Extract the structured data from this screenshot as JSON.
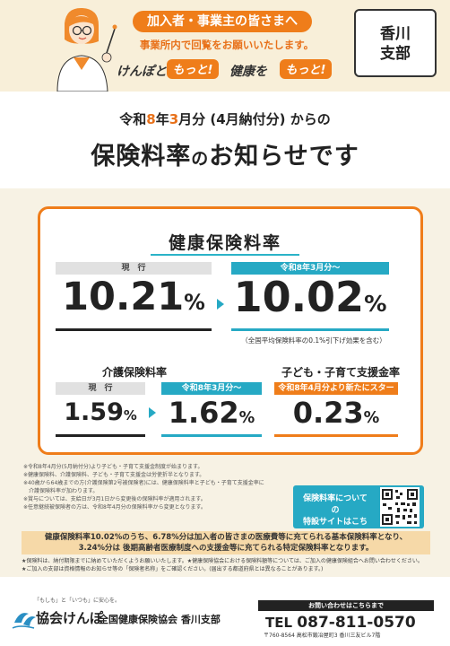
{
  "header": {
    "audience": "加入者・事業主の皆さまへ",
    "audience_sub": "事業所内で回覧をお願いいたします。",
    "slogan_part1": "けんぽと",
    "slogan_motto": "もっと!",
    "slogan_part2": "健康を",
    "branch": "香川\n支部"
  },
  "title": {
    "line1_prefix": "令和",
    "year": "8",
    "line1_mid1": "年",
    "month": "3",
    "line1_mid2": "月分 (4月納付分) からの",
    "line2_a": "保険料率",
    "line2_b": "の",
    "line2_c": "お知らせです"
  },
  "health": {
    "heading": "健康保険料率",
    "current_label": "現　行",
    "current_value": "10.21",
    "new_label": "令和8年3月分～",
    "new_value": "10.02",
    "pct": "%",
    "note": "（全国平均保険料率の0.1%引下げ効果を含む）"
  },
  "care": {
    "heading": "介護保険料率",
    "current_label": "現　行",
    "current_value": "1.59",
    "new_label": "令和8年3月分～",
    "new_value": "1.62",
    "pct": "%"
  },
  "child": {
    "heading": "子ども・子育て支援金率",
    "label": "令和8年4月分より新たにスタート",
    "value": "0.23",
    "pct": "%"
  },
  "footnotes": [
    "※令和8年4月分(5月納付分)より子ども・子育て支援金制度が始まります。",
    "※健康保険料、介護保険料、子ども・子育て支援金は労使折半となります。",
    "※40歳から64歳までの方(介護保険第2号被保険者)には、健康保険料率と子ども・子育て支援金率に",
    "　介護保険料率が加わります。",
    "※賞与については、支給日が3月1日から変更後の保険料率が適用されます。",
    "※任意継続被保険者の方は、令和8年4月分の保険料率から変更となります。"
  ],
  "qr_cta": "保険料率についての\n特設サイトはこちら",
  "explain": "健康保険料率10.02%のうち、6.78%分は加入者の皆さまの医療費等に充てられる基本保険料率となり、\n3.24%分は 後期高齢者医療制度への支援金等に充てられる特定保険料率となります。",
  "notices": [
    "★保険料は、納付期限までに納めていただくようお願いいたします。★健康保険協会における保険料額等については、ご加入の健康保険組合へお問い合わせください。",
    "★ご加入の支部は資格情報のお知らせ等の「保険者名称」をご確認ください。(届出する都道府県とは異なることがあります。)"
  ],
  "footer": {
    "tagline": "「もしも」と「いつも」に安心を。",
    "logo_name": "協会けんぽ",
    "association": "全国健康保険協会 香川支部",
    "contact_head": "お問い合わせはこちらまで",
    "tel_prefix": "TEL",
    "tel": "087-811-0570",
    "address": "〒760-8564 高松市鍛冶屋町3 香川三友ビル7階"
  },
  "colors": {
    "orange": "#ef7d1a",
    "teal": "#26a9c4",
    "cream": "#f7f2e4"
  }
}
